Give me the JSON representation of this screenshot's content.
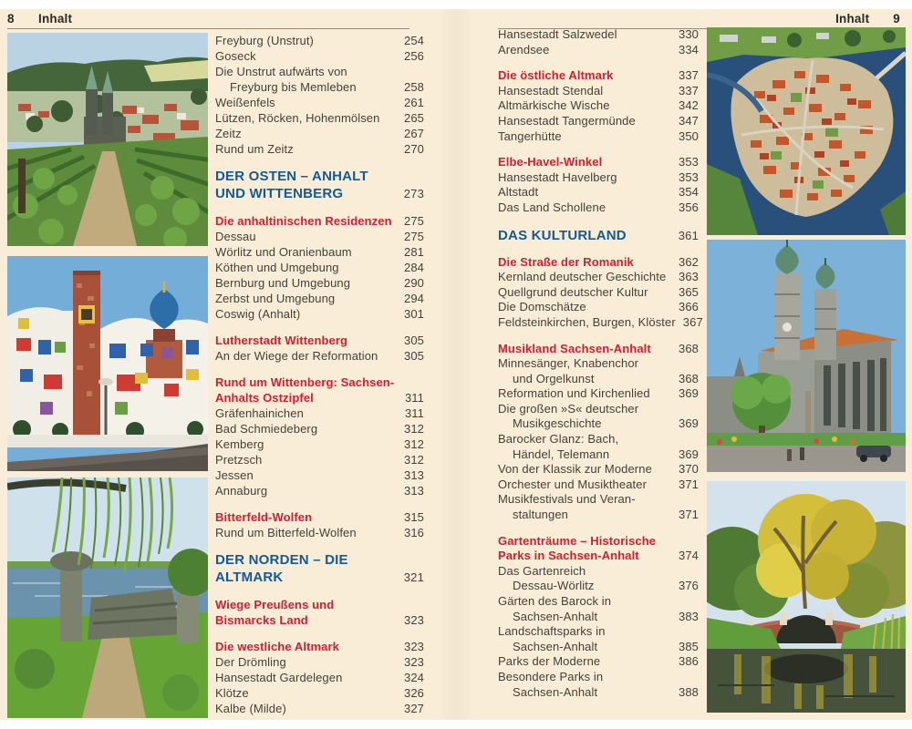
{
  "colors": {
    "paper": "#f9edd8",
    "body_text": "#46403a",
    "chapter_blue": "#135a96",
    "subhead_red": "#d41e2f",
    "header_rule": "#8f8c85"
  },
  "left_page": {
    "page_number": "8",
    "header_label": "Inhalt",
    "photos": [
      {
        "id": "photo-town-vineyard",
        "desc": "town with twin-spired church seen over vineyard"
      },
      {
        "id": "photo-hundertwasser-building",
        "desc": "colorful building with brick tower and blue onion dome"
      },
      {
        "id": "photo-lakeside-park",
        "desc": "lakeside park with willow and stone ruins"
      }
    ],
    "blocks": [
      {
        "style": "plain",
        "lines": [
          {
            "t": "Freyburg (Unstrut)",
            "n": "254"
          },
          {
            "t": "Goseck",
            "n": "256"
          },
          {
            "t": "Die Unstrut aufwärts von"
          },
          {
            "t": "Freyburg bis Memleben",
            "n": "258",
            "ind": 1
          },
          {
            "t": "Weißenfels",
            "n": "261"
          },
          {
            "t": "Lützen, Röcken, Hohenmölsen",
            "n": "265"
          },
          {
            "t": "Zeitz",
            "n": "267"
          },
          {
            "t": "Rund um Zeitz",
            "n": "270"
          }
        ]
      },
      {
        "style": "chapter",
        "lines": [
          {
            "t": "DER OSTEN – ANHALT"
          },
          {
            "t": "UND WITTENBERG",
            "n": "273"
          }
        ]
      },
      {
        "style": "plain",
        "lines": [
          {
            "t": "Die anhaltinischen Residenzen",
            "n": "275",
            "red": 1
          },
          {
            "t": "Dessau",
            "n": "275"
          },
          {
            "t": "Wörlitz und Oranienbaum",
            "n": "281"
          },
          {
            "t": "Köthen und Umgebung",
            "n": "284"
          },
          {
            "t": "Bernburg und Umgebung",
            "n": "290"
          },
          {
            "t": "Zerbst und Umgebung",
            "n": "294"
          },
          {
            "t": "Coswig (Anhalt)",
            "n": "301"
          }
        ]
      },
      {
        "style": "plain",
        "lines": [
          {
            "t": "Lutherstadt Wittenberg",
            "n": "305",
            "red": 1
          },
          {
            "t": "An der Wiege der Reformation",
            "n": "305"
          }
        ]
      },
      {
        "style": "plain",
        "lines": [
          {
            "t": "Rund um Wittenberg: Sachsen-",
            "red": 1
          },
          {
            "t": "Anhalts Ostzipfel",
            "n": "311",
            "red": 1
          },
          {
            "t": "Gräfenhainichen",
            "n": "311"
          },
          {
            "t": "Bad Schmiedeberg",
            "n": "312"
          },
          {
            "t": "Kemberg",
            "n": "312"
          },
          {
            "t": "Pretzsch",
            "n": "312"
          },
          {
            "t": "Jessen",
            "n": "313"
          },
          {
            "t": "Annaburg",
            "n": "313"
          }
        ]
      },
      {
        "style": "plain",
        "lines": [
          {
            "t": "Bitterfeld-Wolfen",
            "n": "315",
            "red": 1
          },
          {
            "t": "Rund um Bitterfeld-Wolfen",
            "n": "316"
          }
        ]
      },
      {
        "style": "chapter",
        "lines": [
          {
            "t": "DER NORDEN – DIE"
          },
          {
            "t": "ALTMARK",
            "n": "321"
          }
        ]
      },
      {
        "style": "plain",
        "lines": [
          {
            "t": "Wiege Preußens und",
            "red": 1
          },
          {
            "t": "Bismarcks Land",
            "n": "323",
            "red": 1
          }
        ]
      },
      {
        "style": "plain",
        "lines": [
          {
            "t": "Die westliche Altmark",
            "n": "323",
            "red": 1
          },
          {
            "t": "Der Drömling",
            "n": "323"
          },
          {
            "t": "Hansestadt Gardelegen",
            "n": "324"
          },
          {
            "t": "Klötze",
            "n": "326"
          },
          {
            "t": "Kalbe (Milde)",
            "n": "327"
          }
        ]
      }
    ]
  },
  "right_page": {
    "page_number": "9",
    "header_label": "Inhalt",
    "photos": [
      {
        "id": "photo-aerial-river-town",
        "desc": "aerial view of red-roofed town on island in river"
      },
      {
        "id": "photo-cathedral",
        "desc": "cathedral with two green-domed towers"
      },
      {
        "id": "photo-autumn-park-bridge",
        "desc": "autumn park with brick arch bridge over water"
      }
    ],
    "blocks": [
      {
        "style": "plain",
        "lines": [
          {
            "t": "Hansestadt Salzwedel",
            "n": "330"
          },
          {
            "t": "Arendsee",
            "n": "334"
          }
        ]
      },
      {
        "style": "plain",
        "lines": [
          {
            "t": "Die östliche Altmark",
            "n": "337",
            "red": 1
          },
          {
            "t": "Hansestadt Stendal",
            "n": "337"
          },
          {
            "t": "Altmärkische Wische",
            "n": "342"
          },
          {
            "t": "Hansestadt Tangermünde",
            "n": "347"
          },
          {
            "t": "Tangerhütte",
            "n": "350"
          }
        ]
      },
      {
        "style": "plain",
        "lines": [
          {
            "t": "Elbe-Havel-Winkel",
            "n": "353",
            "red": 1
          },
          {
            "t": "Hansestadt Havelberg",
            "n": "353"
          },
          {
            "t": "Altstadt",
            "n": "354"
          },
          {
            "t": "Das Land Schollene",
            "n": "356"
          }
        ]
      },
      {
        "style": "chapter",
        "lines": [
          {
            "t": "DAS KULTURLAND",
            "n": "361"
          }
        ]
      },
      {
        "style": "plain",
        "lines": [
          {
            "t": "Die Straße der Romanik",
            "n": "362",
            "red": 1
          },
          {
            "t": "Kernland deutscher Geschichte",
            "n": "363"
          },
          {
            "t": "Quellgrund deutscher Kultur",
            "n": "365"
          },
          {
            "t": "Die Domschätze",
            "n": "366"
          },
          {
            "t": "Feldsteinkirchen, Burgen, Klöster",
            "n": "367"
          }
        ]
      },
      {
        "style": "plain",
        "lines": [
          {
            "t": "Musikland Sachsen-Anhalt",
            "n": "368",
            "red": 1
          },
          {
            "t": "Minnesänger, Knabenchor"
          },
          {
            "t": "und Orgelkunst",
            "n": "368",
            "ind": 1
          },
          {
            "t": "Reformation und Kirchenlied",
            "n": "369"
          },
          {
            "t": "Die großen »S« deutscher"
          },
          {
            "t": "Musikgeschichte",
            "n": "369",
            "ind": 1
          },
          {
            "t": "Barocker Glanz: Bach,"
          },
          {
            "t": "Händel, Telemann",
            "n": "369",
            "ind": 1
          },
          {
            "t": "Von der Klassik zur Moderne",
            "n": "370"
          },
          {
            "t": "Orchester und Musiktheater",
            "n": "371"
          },
          {
            "t": "Musikfestivals und Veran-"
          },
          {
            "t": "staltungen",
            "n": "371",
            "ind": 1
          }
        ]
      },
      {
        "style": "plain",
        "lines": [
          {
            "t": "Gartenträume – Historische",
            "red": 1
          },
          {
            "t": "Parks in Sachsen-Anhalt",
            "n": "374",
            "red": 1
          },
          {
            "t": "Das Gartenreich"
          },
          {
            "t": "Dessau-Wörlitz",
            "n": "376",
            "ind": 1
          },
          {
            "t": "Gärten des Barock in"
          },
          {
            "t": "Sachsen-Anhalt",
            "n": "383",
            "ind": 1
          },
          {
            "t": "Landschaftsparks in"
          },
          {
            "t": "Sachsen-Anhalt",
            "n": "385",
            "ind": 1
          },
          {
            "t": "Parks der Moderne",
            "n": "386"
          },
          {
            "t": "Besondere Parks in"
          },
          {
            "t": "Sachsen-Anhalt",
            "n": "388",
            "ind": 1
          }
        ]
      }
    ]
  }
}
